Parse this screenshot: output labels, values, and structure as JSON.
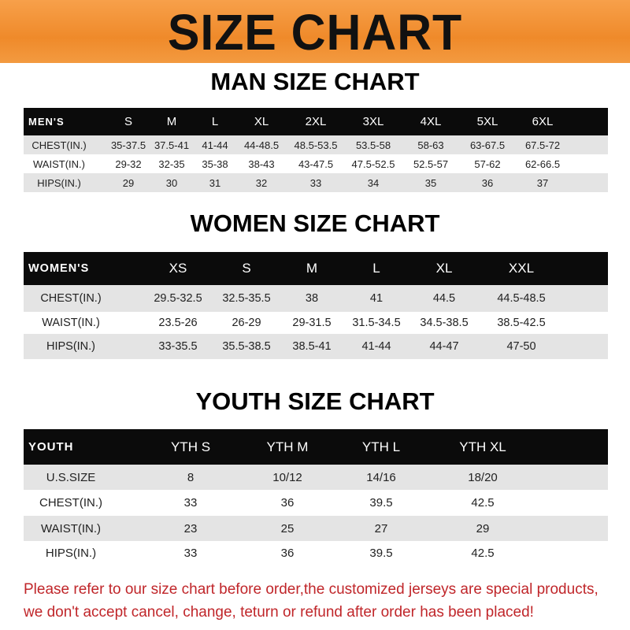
{
  "title": "SIZE CHART",
  "colors": {
    "banner": "#ef8a2a",
    "header_row": "#0b0b0b",
    "stripe": "#e4e4e4",
    "note": "#c0262a"
  },
  "men": {
    "title": "MAN SIZE CHART",
    "header": [
      "MEN'S",
      "S",
      "M",
      "L",
      "XL",
      "2XL",
      "3XL",
      "4XL",
      "5XL",
      "6XL"
    ],
    "rows": [
      [
        "CHEST(IN.)",
        "35-37.5",
        "37.5-41",
        "41-44",
        "44-48.5",
        "48.5-53.5",
        "53.5-58",
        "58-63",
        "63-67.5",
        "67.5-72"
      ],
      [
        "WAIST(IN.)",
        "29-32",
        "32-35",
        "35-38",
        "38-43",
        "43-47.5",
        "47.5-52.5",
        "52.5-57",
        "57-62",
        "62-66.5"
      ],
      [
        "HIPS(IN.)",
        "29",
        "30",
        "31",
        "32",
        "33",
        "34",
        "35",
        "36",
        "37"
      ]
    ]
  },
  "women": {
    "title": "WOMEN SIZE CHART",
    "header": [
      "WOMEN'S",
      "XS",
      "S",
      "M",
      "L",
      "XL",
      "XXL"
    ],
    "rows": [
      [
        "CHEST(IN.)",
        "29.5-32.5",
        "32.5-35.5",
        "38",
        "41",
        "44.5",
        "44.5-48.5"
      ],
      [
        "WAIST(IN.)",
        "23.5-26",
        "26-29",
        "29-31.5",
        "31.5-34.5",
        "34.5-38.5",
        "38.5-42.5"
      ],
      [
        "HIPS(IN.)",
        "33-35.5",
        "35.5-38.5",
        "38.5-41",
        "41-44",
        "44-47",
        "47-50"
      ]
    ]
  },
  "youth": {
    "title": "YOUTH SIZE CHART",
    "header": [
      "YOUTH",
      "YTH S",
      "YTH M",
      "YTH L",
      "YTH XL"
    ],
    "rows": [
      [
        "U.S.SIZE",
        "8",
        "10/12",
        "14/16",
        "18/20"
      ],
      [
        "CHEST(IN.)",
        "33",
        "36",
        "39.5",
        "42.5"
      ],
      [
        "WAIST(IN.)",
        "23",
        "25",
        "27",
        "29"
      ],
      [
        "HIPS(IN.)",
        "33",
        "36",
        "39.5",
        "42.5"
      ]
    ]
  },
  "note_lines": [
    "Please refer to our size chart before order,the customized jerseys are special products,",
    "we don't accept cancel, change, teturn or refund after order has been placed!"
  ]
}
